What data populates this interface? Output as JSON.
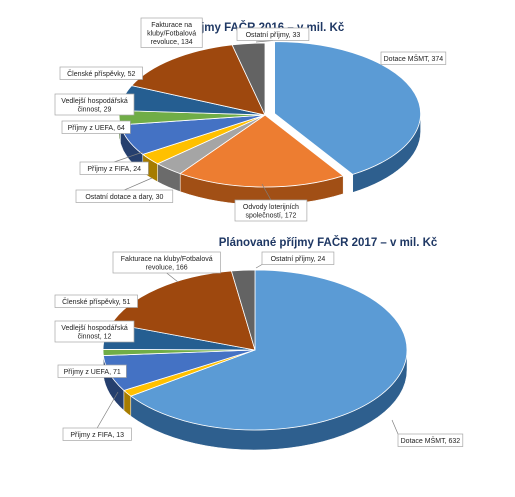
{
  "chart_data": [
    {
      "type": "pie",
      "title": "Příjmy FAČR 2016 – v mil. Kč",
      "slices": [
        {
          "name": "Dotace MŠMT",
          "value": 374,
          "label": "Dotace MŠMT, 374",
          "color": "#5b9bd5",
          "side": "#2e5f8e"
        },
        {
          "name": "Odvody loterijních společností",
          "value": 172,
          "label_lines": [
            "Odvody loterijních",
            "společností, 172"
          ],
          "color": "#ed7d31",
          "side": "#a14f15"
        },
        {
          "name": "Ostatní dotace a dary",
          "value": 30,
          "label": "Ostatní dotace a dary, 30",
          "color": "#a5a5a5",
          "side": "#6b6b6b"
        },
        {
          "name": "Příjmy z FIFA",
          "value": 24,
          "label": "Příjmy z FIFA, 24",
          "color": "#ffc000",
          "side": "#a67c00"
        },
        {
          "name": "Příjmy z UEFA",
          "value": 64,
          "label": "Příjmy z UEFA, 64",
          "color": "#4472c4",
          "side": "#253f6e"
        },
        {
          "name": "Vedlejší hospodářská činnost",
          "value": 29,
          "label_lines": [
            "Vedlejší hospodářská",
            "činnost, 29"
          ],
          "color": "#70ad47",
          "side": "#456b2b"
        },
        {
          "name": "Členské příspěvky",
          "value": 52,
          "label": "Členské příspěvky, 52",
          "color": "#255e91",
          "side": "#163a5a"
        },
        {
          "name": "Fakturace na kluby/Fotbalová revoluce",
          "value": 134,
          "label_lines": [
            "Fakturace na",
            "kluby/Fotbalová",
            "revoluce, 134"
          ],
          "color": "#9e480e",
          "side": "#5e2a08"
        },
        {
          "name": "Ostatní příjmy",
          "value": 33,
          "label": "Ostatní příjmy, 33",
          "color": "#636363",
          "side": "#3a3a3a"
        }
      ]
    },
    {
      "type": "pie",
      "title": "Plánované příjmy FAČR 2017 – v mil. Kč",
      "slices": [
        {
          "name": "Dotace MŠMT",
          "value": 632,
          "label": "Dotace MŠMT, 632",
          "color": "#5b9bd5",
          "side": "#2e5f8e"
        },
        {
          "name": "Příjmy z FIFA",
          "value": 13,
          "label": "Příjmy z FIFA, 13",
          "color": "#ffc000",
          "side": "#a67c00"
        },
        {
          "name": "Příjmy z UEFA",
          "value": 71,
          "label": "Příjmy z UEFA, 71",
          "color": "#4472c4",
          "side": "#253f6e"
        },
        {
          "name": "Vedlejší hospodářská činnost",
          "value": 12,
          "label_lines": [
            "Vedlejší hospodářská",
            "činnost, 12"
          ],
          "color": "#70ad47",
          "side": "#456b2b"
        },
        {
          "name": "Členské příspěvky",
          "value": 51,
          "label": "Členské příspěvky, 51",
          "color": "#255e91",
          "side": "#163a5a"
        },
        {
          "name": "Fakturace na kluby/Fotbalová revoluce",
          "value": 166,
          "label_lines": [
            "Fakturace na kluby/Fotbalová",
            "revoluce, 166"
          ],
          "color": "#9e480e",
          "side": "#5e2a08"
        },
        {
          "name": "Ostatní příjmy",
          "value": 24,
          "label": "Ostatní příjmy, 24",
          "color": "#636363",
          "side": "#3a3a3a"
        }
      ]
    }
  ]
}
